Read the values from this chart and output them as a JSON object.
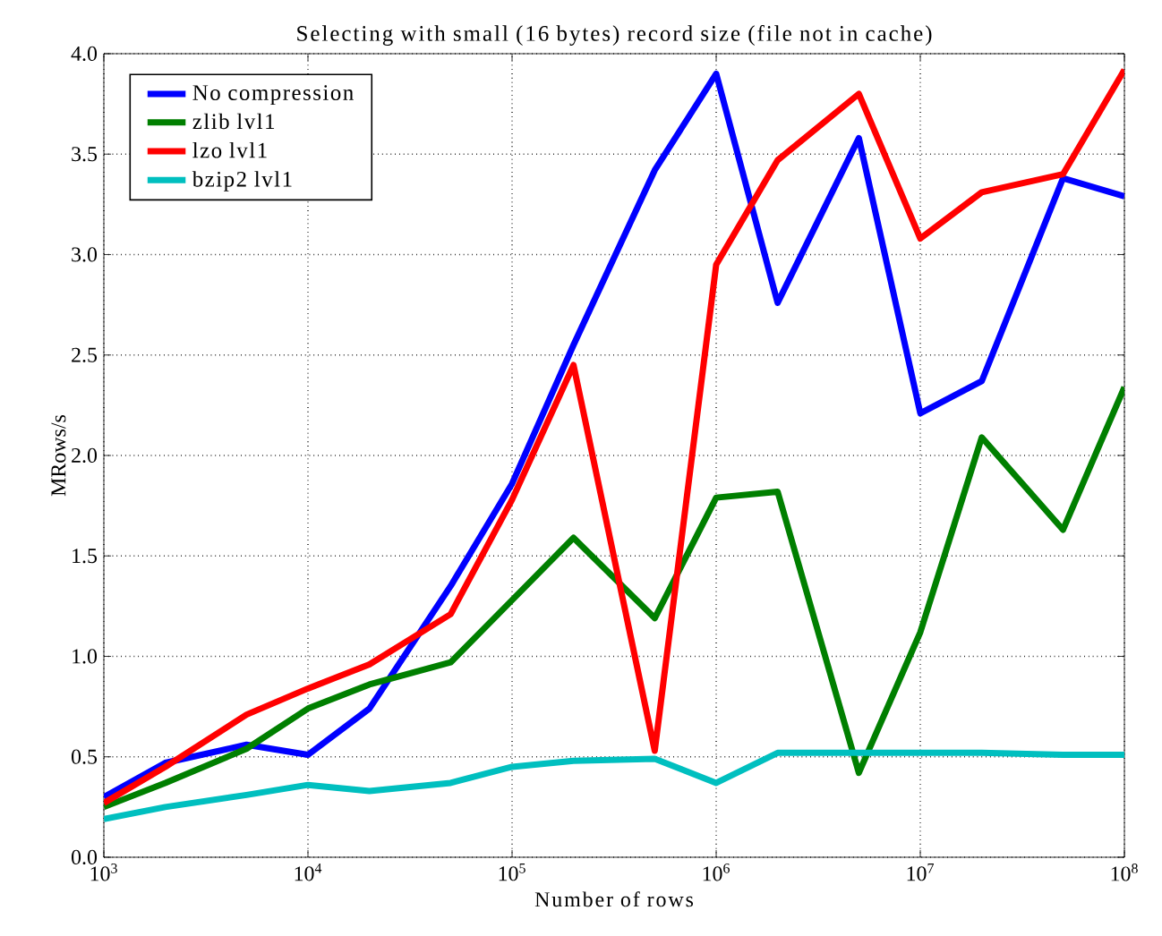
{
  "chart_data": {
    "type": "line",
    "title": "Selecting with small (16 bytes) record size (file not in cache)",
    "xlabel": "Number of rows",
    "ylabel": "MRows/s",
    "x": [
      1000,
      2000,
      5000,
      10000,
      20000,
      50000,
      100000,
      200000,
      500000,
      1000000,
      2000000,
      5000000,
      10000000,
      20000000,
      50000000,
      100000000
    ],
    "series": [
      {
        "name": "No compression",
        "color": "#0000ff",
        "values": [
          0.3,
          0.47,
          0.56,
          0.51,
          0.74,
          1.35,
          1.86,
          2.55,
          3.42,
          3.9,
          2.76,
          3.58,
          2.21,
          2.37,
          3.38,
          3.29
        ]
      },
      {
        "name": "zlib lvl1",
        "color": "#007f00",
        "values": [
          0.25,
          0.37,
          0.54,
          0.74,
          0.86,
          0.97,
          1.28,
          1.59,
          1.19,
          1.79,
          1.82,
          0.42,
          1.12,
          2.09,
          1.63,
          2.34
        ]
      },
      {
        "name": "lzo lvl1",
        "color": "#ff0000",
        "values": [
          0.27,
          0.45,
          0.71,
          0.84,
          0.96,
          1.21,
          1.78,
          2.45,
          0.53,
          2.95,
          3.47,
          3.8,
          3.08,
          3.31,
          3.4,
          3.92
        ]
      },
      {
        "name": "bzip2 lvl1",
        "color": "#00bfbf",
        "values": [
          0.19,
          0.25,
          0.31,
          0.36,
          0.33,
          0.37,
          0.45,
          0.48,
          0.49,
          0.37,
          0.52,
          0.52,
          0.52,
          0.52,
          0.51,
          0.51
        ]
      }
    ],
    "xlim": [
      1000,
      100000000
    ],
    "ylim": [
      0,
      4
    ],
    "log": "x",
    "xticks": [
      {
        "value": 1000,
        "label": "10$^{3}$"
      },
      {
        "value": 10000,
        "label": "10$^{4}$"
      },
      {
        "value": 100000,
        "label": "10$^{5}$"
      },
      {
        "value": 1000000,
        "label": "10$^{6}$"
      },
      {
        "value": 10000000,
        "label": "10$^{7}$"
      },
      {
        "value": 100000000,
        "label": "10$^{8}$"
      }
    ],
    "yticks": [
      {
        "value": 0,
        "label": "0.0"
      },
      {
        "value": 0.5,
        "label": "0.5"
      },
      {
        "value": 1,
        "label": "1.0"
      },
      {
        "value": 1.5,
        "label": "1.5"
      },
      {
        "value": 2,
        "label": "2.0"
      },
      {
        "value": 2.5,
        "label": "2.5"
      },
      {
        "value": 3,
        "label": "3.0"
      },
      {
        "value": 3.5,
        "label": "3.5"
      },
      {
        "value": 4,
        "label": "4.0"
      }
    ],
    "grid": true,
    "legend": "top left",
    "marker": "none",
    "line_style": "solid"
  }
}
